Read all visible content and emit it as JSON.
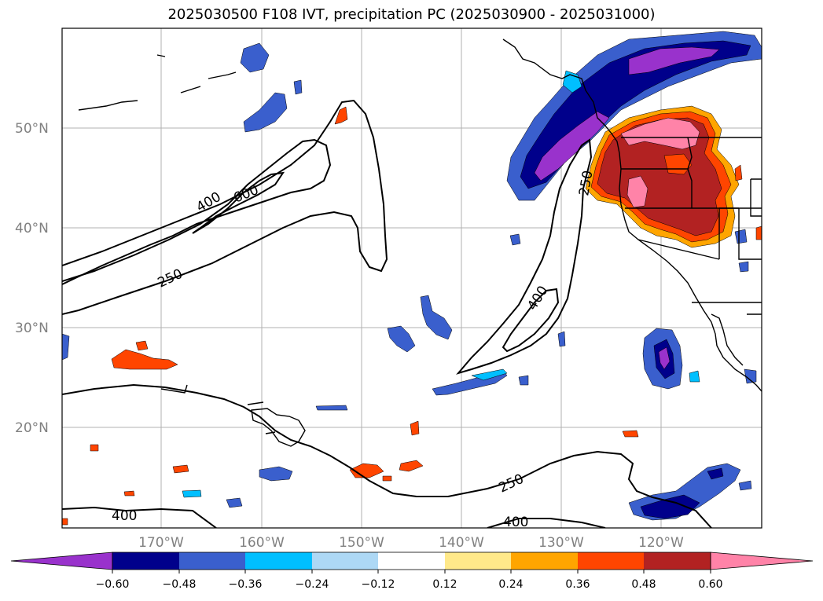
{
  "title": "2025030500 F108 IVT, precipitation PC (2025030900 - 2025031000)",
  "map": {
    "lat_labels": [
      "50°N",
      "40°N",
      "30°N",
      "20°N"
    ],
    "lon_labels": [
      "170°W",
      "160°W",
      "150°W",
      "140°W",
      "130°W",
      "120°W"
    ],
    "ivt_contour_labels": [
      "400",
      "600",
      "250",
      "400",
      "250",
      "250",
      "400",
      "400"
    ]
  },
  "colorbar": {
    "ticks": [
      "−0.60",
      "−0.48",
      "−0.36",
      "−0.24",
      "−0.12",
      "0.12",
      "0.24",
      "0.36",
      "0.48",
      "0.60"
    ],
    "colors": [
      "#9932cc",
      "#00008b",
      "#3a5fcd",
      "#00bfff",
      "#add8f5",
      "#ffffff",
      "#ffe98a",
      "#ffa500",
      "#ff4500",
      "#b22222",
      "#ff83a8"
    ]
  },
  "colors": {
    "neg_strong": "#9932cc",
    "neg_dark": "#00008b",
    "neg_mid": "#3a5fcd",
    "neg_light": "#00bfff",
    "neg_pale": "#add8f5",
    "pos_pale": "#ffe98a",
    "pos_orange": "#ffa500",
    "pos_red": "#ff4500",
    "pos_dark": "#b22222",
    "pos_pink": "#ff83a8"
  }
}
